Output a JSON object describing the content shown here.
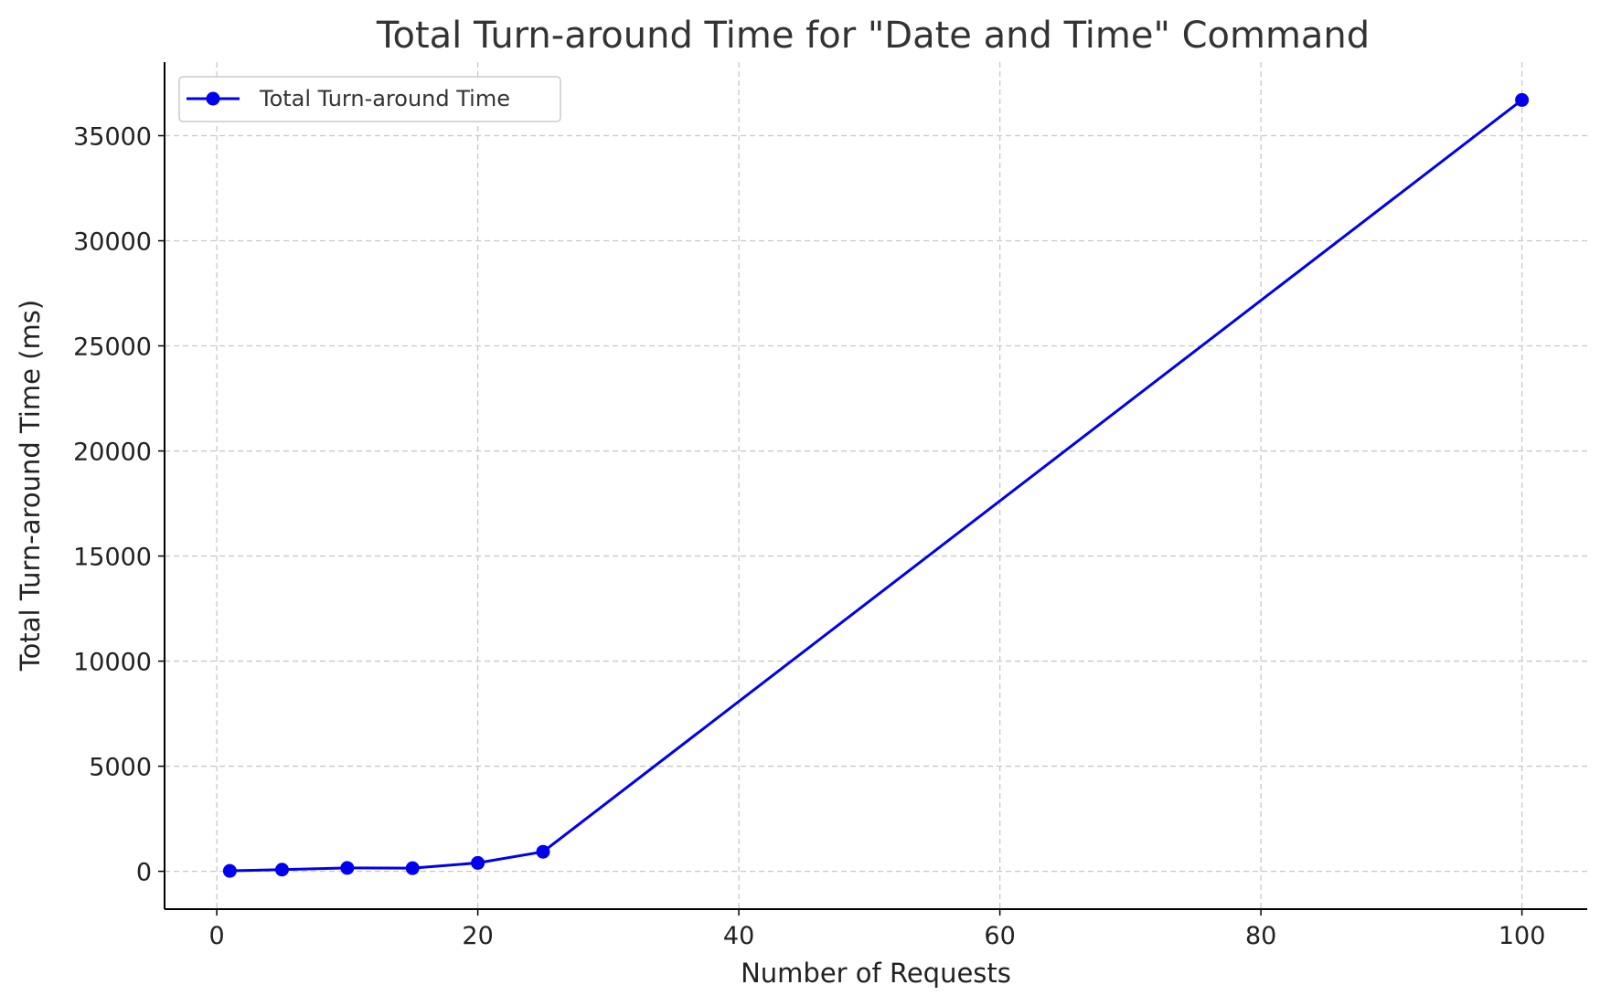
{
  "chart_data": {
    "type": "line",
    "title": "Total Turn-around Time for \"Date and Time\" Command",
    "xlabel": "Number of Requests",
    "ylabel": "Total Turn-around Time (ms)",
    "xlim": [
      -4,
      105
    ],
    "ylim": [
      -1800,
      38500
    ],
    "xticks": [
      0,
      20,
      40,
      60,
      80,
      100
    ],
    "yticks": [
      0,
      5000,
      10000,
      15000,
      20000,
      25000,
      30000,
      35000
    ],
    "grid": true,
    "legend_position": "top-left",
    "series": [
      {
        "name": "Total Turn-around Time",
        "color": "#0000ee",
        "marker": "circle",
        "x": [
          1,
          5,
          10,
          15,
          20,
          25,
          100
        ],
        "y": [
          20,
          80,
          160,
          150,
          400,
          930,
          36700
        ]
      }
    ]
  }
}
